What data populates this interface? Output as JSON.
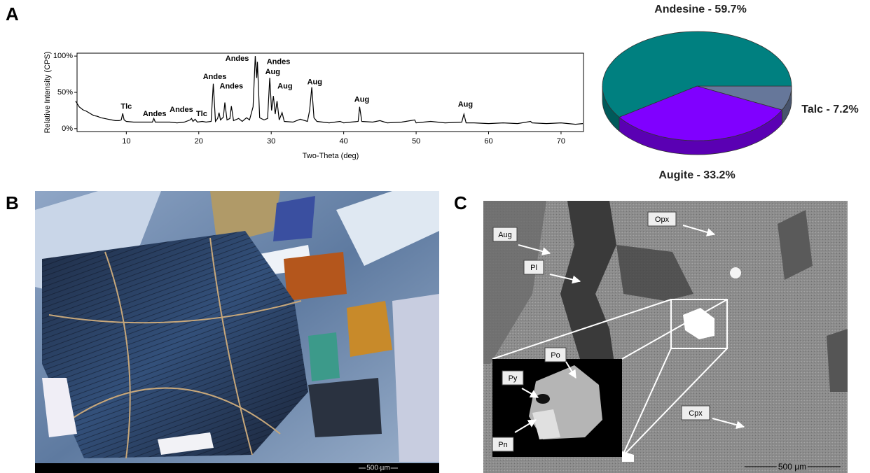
{
  "panel_labels": [
    "A",
    "B",
    "C"
  ],
  "chart_data": [
    {
      "type": "line",
      "x_label": "Two-Theta (deg)",
      "y_label": "Relative Intensity (CPS)",
      "color": "#000000",
      "xlim": [
        3.2,
        73.1
      ],
      "ylim": [
        -4,
        104
      ],
      "xticks": [
        10,
        20,
        30,
        40,
        50,
        60,
        70
      ],
      "yticks": [
        {
          "value": 0,
          "label": "0%"
        },
        {
          "value": 50,
          "label": "50%"
        },
        {
          "value": 100,
          "label": "100%"
        }
      ],
      "x": [
        3,
        3.5,
        4,
        4.5,
        5,
        5.5,
        6,
        6.5,
        7,
        7.5,
        8,
        8.5,
        9,
        9.3,
        9.5,
        9.7,
        10,
        11,
        12,
        13,
        13.6,
        13.8,
        14,
        15,
        16,
        17,
        18,
        18.8,
        19,
        19.2,
        19.5,
        19.8,
        20.5,
        21,
        21.7,
        22,
        22.3,
        22.6,
        22.8,
        23,
        23.4,
        23.6,
        23.9,
        24.3,
        24.5,
        24.8,
        25.5,
        26,
        26.6,
        27,
        27.5,
        27.8,
        28,
        28.1,
        28.4,
        29,
        29.5,
        29.8,
        30.05,
        30.3,
        30.55,
        30.8,
        31.1,
        31.5,
        31.8,
        33,
        34,
        35,
        35.3,
        35.6,
        35.9,
        36.3,
        38,
        39.5,
        40,
        41,
        42,
        42.2,
        42.5,
        44,
        45,
        46,
        48,
        49.8,
        50,
        52,
        54,
        56.3,
        56.6,
        56.9,
        58,
        60,
        62,
        64,
        65.8,
        66,
        68,
        70,
        72,
        73
      ],
      "values": [
        38,
        30,
        26,
        24,
        21,
        18,
        17,
        15,
        14,
        13,
        12,
        11,
        11,
        12,
        21,
        12,
        10,
        9,
        9,
        9,
        9,
        14,
        9,
        9,
        9,
        8,
        9,
        12,
        14,
        10,
        13,
        9,
        10,
        9,
        10,
        62,
        10,
        14,
        22,
        12,
        16,
        36,
        12,
        14,
        31,
        11,
        14,
        10,
        15,
        12,
        30,
        100,
        70,
        92,
        15,
        12,
        14,
        70,
        25,
        45,
        20,
        38,
        12,
        22,
        10,
        9,
        13,
        10,
        25,
        57,
        15,
        10,
        8,
        10,
        8,
        9,
        10,
        30,
        10,
        9,
        11,
        8,
        9,
        12,
        8,
        10,
        8,
        9,
        20,
        8,
        8,
        7,
        8,
        7,
        10,
        8,
        7,
        8,
        6,
        7
      ],
      "annotations": [
        {
          "text": "Tlc",
          "x": 10.0,
          "y": 30
        },
        {
          "text": "Andes",
          "x": 13.9,
          "y": 20
        },
        {
          "text": "Andes",
          "x": 17.6,
          "y": 26
        },
        {
          "text": "Tlc",
          "x": 20.4,
          "y": 20
        },
        {
          "text": "Andes",
          "x": 22.2,
          "y": 71
        },
        {
          "text": "Andes",
          "x": 24.5,
          "y": 58
        },
        {
          "text": "Andes",
          "x": 25.3,
          "y": 96
        },
        {
          "text": "Andes",
          "x": 31.0,
          "y": 92
        },
        {
          "text": "Aug",
          "x": 30.2,
          "y": 78
        },
        {
          "text": "Aug",
          "x": 31.9,
          "y": 58
        },
        {
          "text": "Aug",
          "x": 36.0,
          "y": 64
        },
        {
          "text": "Aug",
          "x": 42.5,
          "y": 40
        },
        {
          "text": "Aug",
          "x": 56.8,
          "y": 33
        }
      ]
    },
    {
      "type": "pie",
      "values": [
        7.2,
        33.2,
        59.7
      ],
      "value_labels": [
        "Talc - 7.2%",
        "Augite - 33.2%",
        "Andesine - 59.7%"
      ],
      "colors": [
        "#66779a",
        "#8000ff",
        "#008080"
      ]
    }
  ],
  "micrograph_b": {
    "scale_bar": "500 µm"
  },
  "micrograph_c": {
    "labels": [
      "Aug",
      "Pl",
      "Opx",
      "Cpx"
    ],
    "inset_labels": [
      "Po",
      "Py",
      "Pn"
    ],
    "scale_bar": "500 µm"
  }
}
